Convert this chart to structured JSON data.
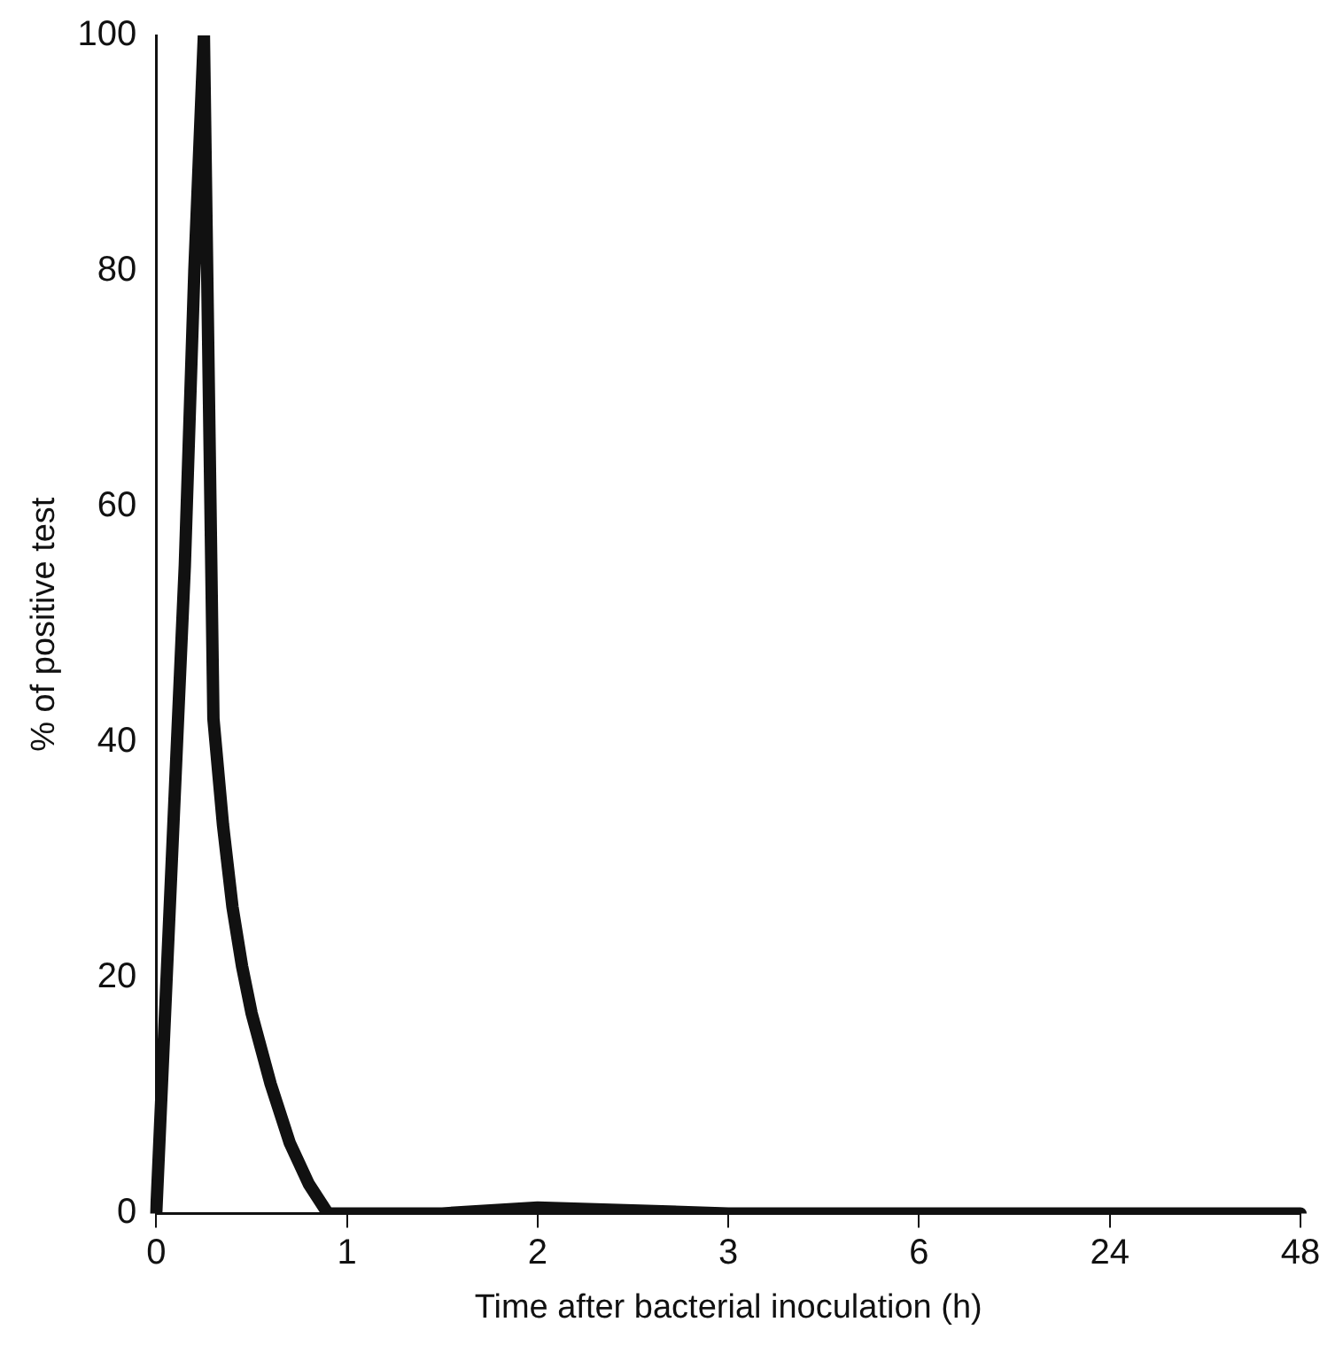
{
  "chart_data": {
    "type": "line",
    "xlabel": "Time after bacterial inoculation (h)",
    "ylabel": "% of positive test",
    "categories": [
      "0",
      null,
      null,
      null,
      null,
      null,
      null,
      null,
      null,
      null,
      null,
      null,
      null,
      null,
      null,
      null,
      null,
      null,
      null,
      null,
      "1",
      null,
      null,
      null,
      null,
      null,
      null,
      null,
      null,
      null,
      null,
      null,
      null,
      null,
      null,
      null,
      null,
      null,
      null,
      null,
      "2",
      null,
      null,
      null,
      null,
      null,
      null,
      null,
      null,
      null,
      null,
      null,
      null,
      null,
      null,
      null,
      null,
      null,
      null,
      null,
      "3",
      null,
      null,
      null,
      null,
      null,
      null,
      null,
      null,
      null,
      null,
      null,
      null,
      null,
      null,
      null,
      null,
      null,
      null,
      null,
      "6",
      null,
      null,
      null,
      null,
      null,
      null,
      null,
      null,
      null,
      null,
      null,
      null,
      null,
      null,
      null,
      null,
      null,
      null,
      null,
      "24",
      null,
      null,
      null,
      null,
      null,
      null,
      null,
      null,
      null,
      null,
      null,
      null,
      null,
      null,
      null,
      null,
      null,
      null,
      null,
      "48"
    ],
    "ylim": [
      0,
      100
    ],
    "yticks": [
      0,
      20,
      40,
      60,
      80,
      100
    ],
    "grid": false,
    "legend": false,
    "marker": "none",
    "series": [
      {
        "color": "#111111",
        "values": [
          0,
          null,
          null,
          55,
          80,
          100,
          42,
          33,
          26,
          21,
          17,
          null,
          11,
          null,
          6,
          null,
          2.5,
          null,
          0,
          null,
          null,
          null,
          null,
          null,
          null,
          null,
          null,
          null,
          null,
          null,
          0,
          null,
          null,
          null,
          null,
          null,
          null,
          null,
          null,
          null,
          0.5,
          null,
          null,
          null,
          null,
          null,
          null,
          null,
          null,
          null,
          null,
          null,
          null,
          null,
          null,
          null,
          null,
          null,
          null,
          null,
          0,
          null,
          null,
          null,
          null,
          null,
          null,
          null,
          null,
          null,
          null,
          null,
          null,
          null,
          null,
          null,
          null,
          null,
          null,
          null,
          0,
          null,
          null,
          null,
          null,
          null,
          null,
          null,
          null,
          null,
          null,
          null,
          null,
          null,
          null,
          null,
          null,
          null,
          null,
          null,
          0,
          null,
          null,
          null,
          null,
          null,
          null,
          null,
          null,
          null,
          null,
          null,
          null,
          null,
          null,
          null,
          null,
          null,
          null,
          null,
          0
        ]
      }
    ]
  }
}
